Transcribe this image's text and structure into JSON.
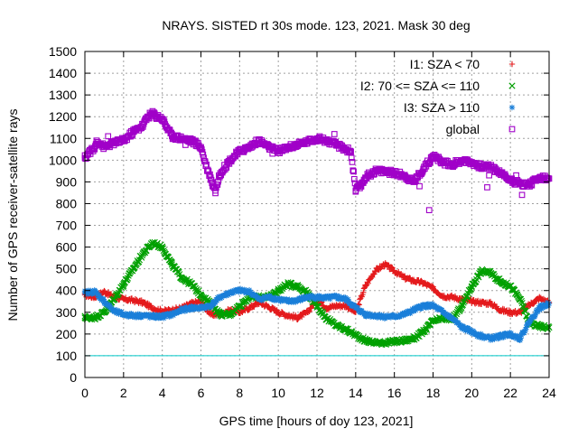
{
  "chart_data": {
    "type": "scatter",
    "title": "NRAYS. SISTED rt 30s mode. 123, 2021. Mask 30 deg",
    "xlabel": "GPS time [hours of doy 123, 2021]",
    "ylabel": "Number of GPS receiver-satellite rays",
    "xlim": [
      0,
      24
    ],
    "ylim": [
      0,
      1500
    ],
    "xticks": [
      "0",
      "2",
      "4",
      "6",
      "8",
      "10",
      "12",
      "14",
      "16",
      "18",
      "20",
      "22",
      "24"
    ],
    "yticks": [
      "0",
      "100",
      "200",
      "300",
      "400",
      "500",
      "600",
      "700",
      "800",
      "900",
      "1000",
      "1100",
      "1200",
      "1300",
      "1400",
      "1500"
    ],
    "grid": true,
    "legend_position": "top-right",
    "reference_line": {
      "y": 100,
      "color": "#00c8c8"
    },
    "series": [
      {
        "name": "I1: SZA < 70",
        "color": "#e41a1c",
        "marker": "plus",
        "points": [
          [
            0,
            380
          ],
          [
            0.5,
            370
          ],
          [
            1,
            395
          ],
          [
            1.5,
            370
          ],
          [
            2,
            360
          ],
          [
            2.5,
            355
          ],
          [
            3,
            345
          ],
          [
            3.5,
            320
          ],
          [
            4,
            305
          ],
          [
            4.5,
            310
          ],
          [
            5,
            320
          ],
          [
            5.5,
            340
          ],
          [
            6,
            350
          ],
          [
            6.5,
            290
          ],
          [
            7,
            290
          ],
          [
            7.5,
            310
          ],
          [
            8,
            300
          ],
          [
            8.5,
            320
          ],
          [
            9,
            345
          ],
          [
            9.5,
            325
          ],
          [
            10,
            300
          ],
          [
            10.5,
            285
          ],
          [
            11,
            275
          ],
          [
            11.5,
            300
          ],
          [
            12,
            360
          ],
          [
            12.5,
            320
          ],
          [
            13,
            330
          ],
          [
            13.5,
            330
          ],
          [
            14,
            300
          ],
          [
            14.5,
            420
          ],
          [
            15,
            490
          ],
          [
            15.5,
            520
          ],
          [
            16,
            490
          ],
          [
            16.5,
            460
          ],
          [
            17,
            445
          ],
          [
            17.5,
            435
          ],
          [
            18,
            410
          ],
          [
            18.5,
            375
          ],
          [
            19,
            370
          ],
          [
            19.5,
            360
          ],
          [
            20,
            350
          ],
          [
            20.5,
            345
          ],
          [
            21,
            340
          ],
          [
            21.5,
            310
          ],
          [
            22,
            300
          ],
          [
            22.5,
            300
          ],
          [
            23,
            335
          ],
          [
            23.5,
            365
          ],
          [
            24,
            345
          ]
        ]
      },
      {
        "name": "I2: 70 <= SZA <= 110",
        "color": "#00a000",
        "marker": "cross",
        "points": [
          [
            0,
            275
          ],
          [
            0.5,
            275
          ],
          [
            1,
            300
          ],
          [
            1.5,
            360
          ],
          [
            2,
            430
          ],
          [
            2.5,
            500
          ],
          [
            3,
            570
          ],
          [
            3.5,
            620
          ],
          [
            4,
            600
          ],
          [
            4.5,
            520
          ],
          [
            5,
            460
          ],
          [
            5.5,
            430
          ],
          [
            6,
            380
          ],
          [
            6.5,
            340
          ],
          [
            7,
            290
          ],
          [
            7.5,
            290
          ],
          [
            8,
            330
          ],
          [
            8.5,
            370
          ],
          [
            9,
            370
          ],
          [
            9.5,
            370
          ],
          [
            10,
            400
          ],
          [
            10.5,
            430
          ],
          [
            11,
            420
          ],
          [
            11.5,
            390
          ],
          [
            12,
            330
          ],
          [
            12.5,
            270
          ],
          [
            13,
            240
          ],
          [
            13.5,
            220
          ],
          [
            14,
            195
          ],
          [
            14.5,
            170
          ],
          [
            15,
            160
          ],
          [
            15.5,
            160
          ],
          [
            16,
            165
          ],
          [
            16.5,
            170
          ],
          [
            17,
            180
          ],
          [
            17.5,
            210
          ],
          [
            18,
            260
          ],
          [
            18.5,
            270
          ],
          [
            19,
            270
          ],
          [
            19.5,
            330
          ],
          [
            20,
            420
          ],
          [
            20.5,
            490
          ],
          [
            21,
            480
          ],
          [
            21.5,
            440
          ],
          [
            22,
            420
          ],
          [
            22.5,
            360
          ],
          [
            23,
            250
          ],
          [
            23.5,
            235
          ],
          [
            24,
            230
          ]
        ]
      },
      {
        "name": "I3: SZA > 110",
        "color": "#1a7fd9",
        "marker": "star",
        "points": [
          [
            0,
            390
          ],
          [
            0.5,
            395
          ],
          [
            1,
            350
          ],
          [
            1.5,
            305
          ],
          [
            2,
            290
          ],
          [
            2.5,
            285
          ],
          [
            3,
            285
          ],
          [
            3.5,
            280
          ],
          [
            4,
            280
          ],
          [
            4.5,
            290
          ],
          [
            5,
            310
          ],
          [
            5.5,
            320
          ],
          [
            6,
            320
          ],
          [
            6.5,
            330
          ],
          [
            7,
            370
          ],
          [
            7.5,
            390
          ],
          [
            8,
            400
          ],
          [
            8.5,
            395
          ],
          [
            9,
            360
          ],
          [
            9.5,
            370
          ],
          [
            10,
            360
          ],
          [
            10.5,
            350
          ],
          [
            11,
            355
          ],
          [
            11.5,
            370
          ],
          [
            12,
            370
          ],
          [
            12.5,
            365
          ],
          [
            13,
            370
          ],
          [
            13.5,
            360
          ],
          [
            14,
            320
          ],
          [
            14.5,
            290
          ],
          [
            15,
            285
          ],
          [
            15.5,
            280
          ],
          [
            16,
            280
          ],
          [
            16.5,
            290
          ],
          [
            17,
            310
          ],
          [
            17.5,
            330
          ],
          [
            18,
            330
          ],
          [
            18.5,
            300
          ],
          [
            19,
            270
          ],
          [
            19.5,
            230
          ],
          [
            20,
            210
          ],
          [
            20.5,
            190
          ],
          [
            21,
            180
          ],
          [
            21.5,
            190
          ],
          [
            22,
            200
          ],
          [
            22.5,
            180
          ],
          [
            23,
            260
          ],
          [
            23.5,
            320
          ],
          [
            24,
            340
          ]
        ]
      },
      {
        "name": "global",
        "color": "#a000c8",
        "marker": "square",
        "points": [
          [
            0,
            1010
          ],
          [
            0.25,
            1040
          ],
          [
            0.5,
            1050
          ],
          [
            1,
            1060
          ],
          [
            1.5,
            1080
          ],
          [
            2,
            1090
          ],
          [
            2.5,
            1130
          ],
          [
            3,
            1160
          ],
          [
            3.25,
            1200
          ],
          [
            3.5,
            1215
          ],
          [
            4,
            1190
          ],
          [
            4.25,
            1150
          ],
          [
            4.5,
            1110
          ],
          [
            5,
            1100
          ],
          [
            5.5,
            1090
          ],
          [
            6,
            1060
          ],
          [
            6.25,
            980
          ],
          [
            6.5,
            920
          ],
          [
            6.75,
            860
          ],
          [
            7,
            940
          ],
          [
            7.5,
            1000
          ],
          [
            8,
            1040
          ],
          [
            8.5,
            1060
          ],
          [
            9,
            1090
          ],
          [
            9.5,
            1060
          ],
          [
            10,
            1040
          ],
          [
            10.5,
            1060
          ],
          [
            11,
            1070
          ],
          [
            11.5,
            1085
          ],
          [
            12,
            1100
          ],
          [
            12.5,
            1090
          ],
          [
            13,
            1070
          ],
          [
            13.5,
            1050
          ],
          [
            13.75,
            1040
          ],
          [
            14,
            860
          ],
          [
            14.25,
            880
          ],
          [
            14.5,
            920
          ],
          [
            15,
            950
          ],
          [
            15.5,
            950
          ],
          [
            16,
            940
          ],
          [
            16.5,
            930
          ],
          [
            17,
            900
          ],
          [
            17.5,
            960
          ],
          [
            18,
            1020
          ],
          [
            18.5,
            990
          ],
          [
            19,
            980
          ],
          [
            19.5,
            1000
          ],
          [
            20,
            990
          ],
          [
            20.5,
            970
          ],
          [
            21,
            970
          ],
          [
            21.5,
            940
          ],
          [
            22,
            910
          ],
          [
            22.5,
            890
          ],
          [
            23,
            890
          ],
          [
            23.5,
            920
          ],
          [
            24,
            915
          ],
          [
            0.6,
            1090
          ],
          [
            1.2,
            1110
          ],
          [
            3.7,
            1190
          ],
          [
            5.2,
            1070
          ],
          [
            6.6,
            880
          ],
          [
            9.7,
            1030
          ],
          [
            12.9,
            1120
          ],
          [
            17.8,
            770
          ],
          [
            20.8,
            875
          ],
          [
            20.9,
            930
          ],
          [
            22.3,
            930
          ],
          [
            22.6,
            840
          ],
          [
            17.3,
            880
          ]
        ]
      }
    ]
  }
}
